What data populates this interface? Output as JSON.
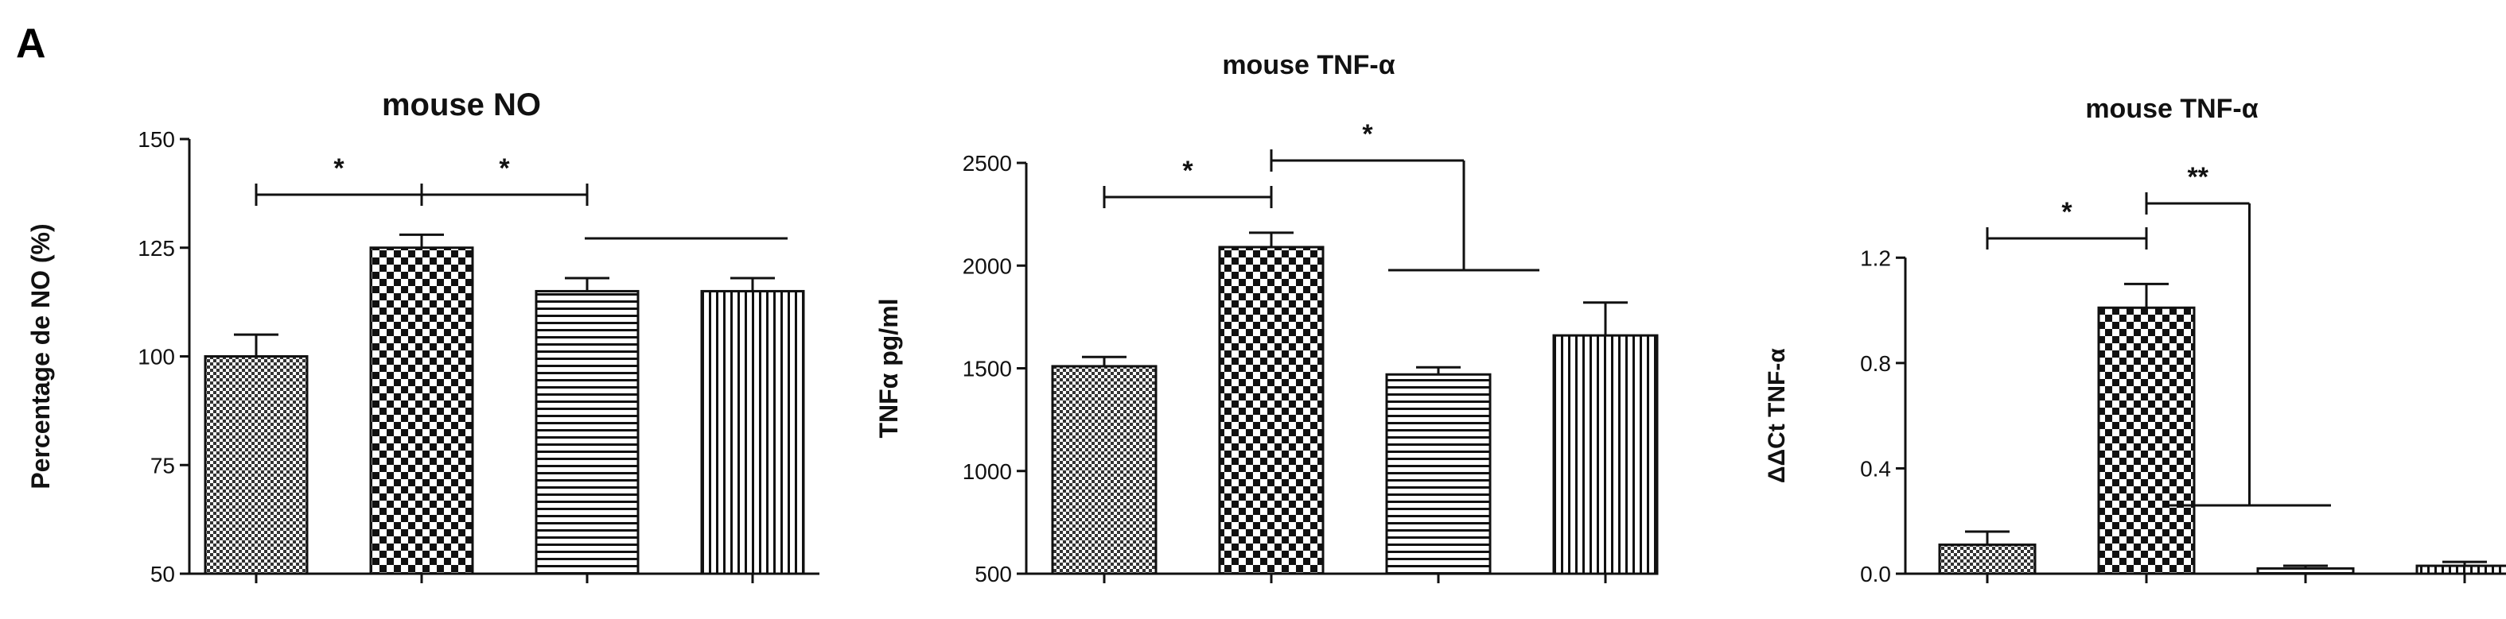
{
  "panel_label": "A",
  "chart_data": [
    {
      "type": "bar",
      "title": "mouse NO",
      "ylabel": "Percentage de NO (%)",
      "ylim": [
        50,
        150
      ],
      "yticks": [
        50,
        75,
        100,
        125,
        150
      ],
      "grid": false,
      "categories": [
        "",
        "",
        "",
        ""
      ],
      "values": [
        100,
        125,
        115,
        115
      ],
      "errors": [
        5,
        3,
        3,
        3
      ],
      "patterns": [
        "fine-checker",
        "checker",
        "horizontal-lines",
        "vertical-lines"
      ],
      "significance": [
        {
          "label": "*",
          "from": 0,
          "to": 1
        },
        {
          "label": "*",
          "from": 1,
          "to": 2
        }
      ]
    },
    {
      "type": "bar",
      "title": "mouse TNF-α",
      "ylabel": "TNFα pg/ml",
      "ylim": [
        500,
        2500
      ],
      "yticks": [
        500,
        1000,
        1500,
        2000,
        2500
      ],
      "grid": false,
      "categories": [
        "",
        "",
        "",
        ""
      ],
      "values": [
        1510,
        2090,
        1470,
        1660
      ],
      "errors": [
        45,
        70,
        35,
        160
      ],
      "patterns": [
        "fine-checker",
        "checker",
        "horizontal-lines",
        "vertical-lines"
      ],
      "significance": [
        {
          "label": "*",
          "from": 0,
          "to": 1
        },
        {
          "label": "*",
          "from": 1,
          "to": [
            2,
            3
          ]
        }
      ]
    },
    {
      "type": "bar",
      "title": "mouse TNF-α",
      "ylabel": "ΔΔCt TNF-α",
      "ylim": [
        0,
        1.4
      ],
      "yticks": [
        "0.0",
        "0.4",
        "0.8",
        "1.2"
      ],
      "grid": false,
      "categories": [
        "",
        "",
        "",
        ""
      ],
      "values": [
        0.11,
        1.01,
        0.02,
        0.03
      ],
      "errors": [
        0.05,
        0.09,
        0.01,
        0.015
      ],
      "patterns": [
        "fine-checker",
        "checker",
        "horizontal-lines",
        "vertical-lines"
      ],
      "significance": [
        {
          "label": "*",
          "from": 0,
          "to": 1
        },
        {
          "label": "**",
          "from": 1,
          "to": [
            2,
            3
          ]
        }
      ]
    }
  ]
}
